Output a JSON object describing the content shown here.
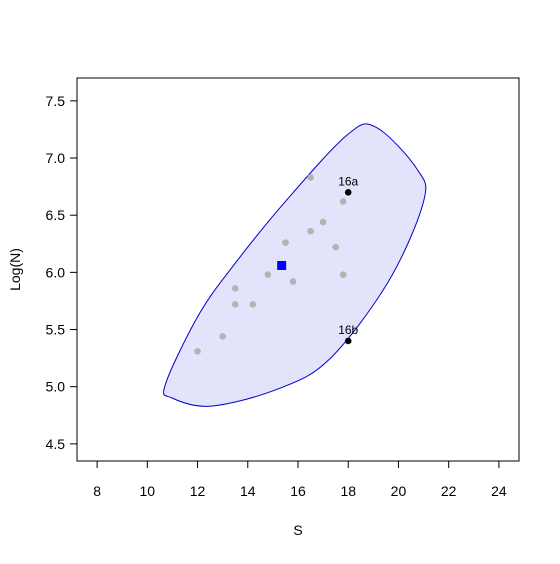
{
  "chart_data": {
    "type": "scatter",
    "title": "",
    "xlabel": "S",
    "ylabel": "Log(N)",
    "xlim": [
      7.2,
      24.8
    ],
    "ylim": [
      4.35,
      7.7
    ],
    "xticks": [
      8,
      10,
      12,
      14,
      16,
      18,
      20,
      22,
      24
    ],
    "yticks": [
      4.5,
      5.0,
      5.5,
      6.0,
      6.5,
      7.0,
      7.5
    ],
    "xtick_labels": [
      "8",
      "10",
      "12",
      "14",
      "16",
      "18",
      "20",
      "22",
      "24"
    ],
    "ytick_labels": [
      "4.5",
      "5.0",
      "5.5",
      "6.0",
      "6.5",
      "7.0",
      "7.5"
    ],
    "grid": false,
    "legend": "none",
    "colors": {
      "background_points": "#b3b3b3",
      "highlight_points": "#000000",
      "centroid": "#0000ff",
      "ellipse_fill": "#e3e3fb",
      "ellipse_stroke": "#0000cc"
    },
    "background_points": [
      {
        "x": 12.0,
        "y": 5.31
      },
      {
        "x": 13.0,
        "y": 5.44
      },
      {
        "x": 13.5,
        "y": 5.72
      },
      {
        "x": 13.5,
        "y": 5.86
      },
      {
        "x": 14.2,
        "y": 5.72
      },
      {
        "x": 14.8,
        "y": 5.98
      },
      {
        "x": 15.5,
        "y": 6.26
      },
      {
        "x": 15.8,
        "y": 5.92
      },
      {
        "x": 16.5,
        "y": 6.83
      },
      {
        "x": 16.5,
        "y": 6.36
      },
      {
        "x": 17.0,
        "y": 6.44
      },
      {
        "x": 17.5,
        "y": 6.22
      },
      {
        "x": 17.8,
        "y": 6.62
      },
      {
        "x": 17.8,
        "y": 5.98
      }
    ],
    "highlight_points": [
      {
        "x": 18.0,
        "y": 6.7,
        "label": "16a"
      },
      {
        "x": 18.0,
        "y": 5.4,
        "label": "16b"
      }
    ],
    "centroid": {
      "x": 15.35,
      "y": 6.06
    },
    "ellipse": {
      "center": {
        "x": 15.85,
        "y": 6.05
      },
      "boundary": [
        {
          "x": 19.1,
          "y": 7.27
        },
        {
          "x": 20.75,
          "y": 6.9
        },
        {
          "x": 21.0,
          "y": 6.62
        },
        {
          "x": 19.6,
          "y": 5.92
        },
        {
          "x": 17.25,
          "y": 5.24
        },
        {
          "x": 15.2,
          "y": 4.98
        },
        {
          "x": 12.55,
          "y": 4.83
        },
        {
          "x": 11.0,
          "y": 4.9
        },
        {
          "x": 10.72,
          "y": 5.02
        },
        {
          "x": 12.05,
          "y": 5.63
        },
        {
          "x": 13.5,
          "y": 6.08
        },
        {
          "x": 15.5,
          "y": 6.62
        },
        {
          "x": 17.95,
          "y": 7.2
        }
      ]
    }
  }
}
